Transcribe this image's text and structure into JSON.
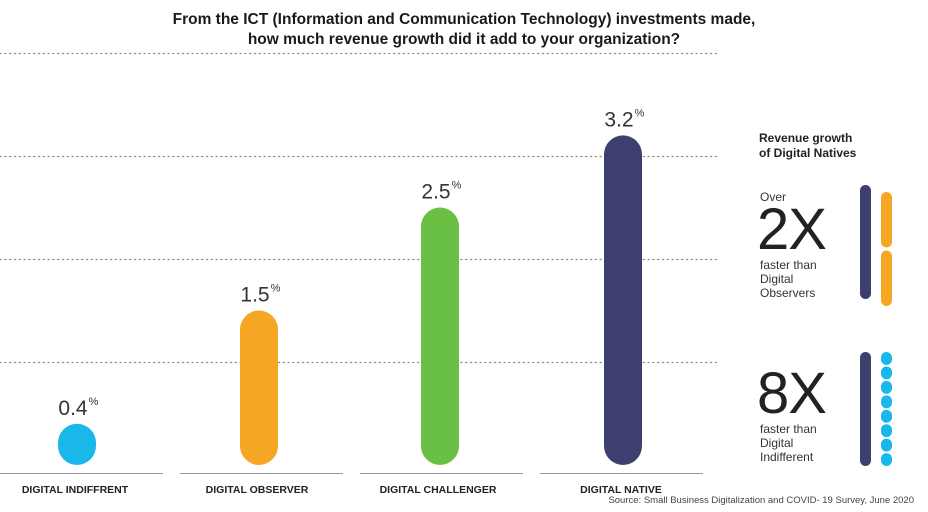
{
  "title_lines": [
    "From the ICT (Information and Communication Technology) investments made,",
    "how much revenue growth did it add to your organization?"
  ],
  "source": "Source: Small Business Digitalization and COVID- 19 Survey, June 2020",
  "side_panel": {
    "title_lines": [
      "Revenue growth",
      "of Digital Natives"
    ],
    "item1": {
      "over": "Over",
      "multiplier": "2X",
      "desc_lines": [
        "faster than",
        "Digital",
        "Observers"
      ],
      "bar_colors": [
        "#3d3f6e",
        "#f5a623"
      ]
    },
    "item2": {
      "multiplier": "8X",
      "desc_lines": [
        "faster than",
        "Digital",
        "Indifferent"
      ],
      "bar_colors": [
        "#3d3f6e",
        "#1ab8e8"
      ]
    }
  },
  "chart_data": {
    "type": "bar",
    "categories": [
      "DIGITAL INDIFFRENT",
      "DIGITAL OBSERVER",
      "DIGITAL CHALLENGER",
      "DIGITAL NATIVE"
    ],
    "values": [
      0.4,
      1.5,
      2.5,
      3.2
    ],
    "value_labels": [
      "0.4",
      "1.5",
      "2.5",
      "3.2"
    ],
    "unit": "%",
    "colors": [
      "#1ab8e8",
      "#f5a623",
      "#6abf45",
      "#3d3f6e"
    ],
    "ylim": [
      0,
      4
    ],
    "gridlines": [
      1,
      2,
      3,
      4
    ],
    "grid": true,
    "grid_style": "dotted"
  }
}
